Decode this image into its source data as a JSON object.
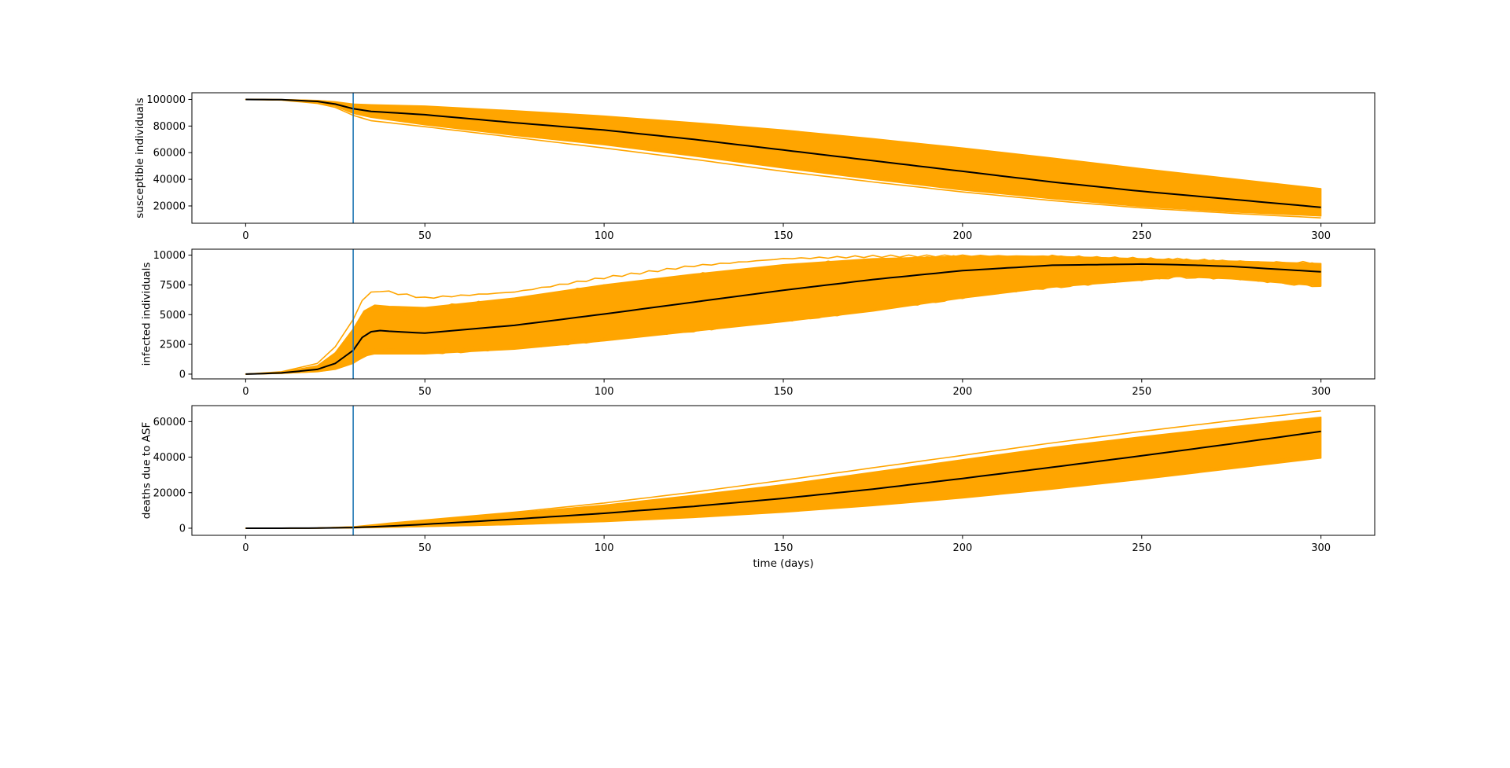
{
  "colors": {
    "ensemble": "#ffa500",
    "mean": "#000000",
    "intervention_line": "#1f77b4",
    "axes": "#000000",
    "background": "#ffffff"
  },
  "chart_data": [
    {
      "type": "line",
      "ylabel": "susceptible individuals",
      "xlabel": "",
      "xlim": [
        -15,
        315
      ],
      "ylim": [
        7000,
        105000
      ],
      "xticks": [
        0,
        50,
        100,
        150,
        200,
        250,
        300
      ],
      "yticks": [
        20000,
        40000,
        60000,
        80000,
        100000
      ],
      "intervention_x": 30,
      "x": [
        0,
        10,
        20,
        25,
        30,
        35,
        50,
        75,
        100,
        125,
        150,
        175,
        200,
        225,
        250,
        275,
        300
      ],
      "series": [
        {
          "role": "mean",
          "values": [
            100000,
            99800,
            98500,
            96500,
            93000,
            91000,
            88500,
            82500,
            77000,
            70000,
            62000,
            54000,
            46000,
            38000,
            31000,
            25000,
            19000
          ]
        },
        {
          "role": "upper",
          "values": [
            100000,
            99900,
            99200,
            98200,
            96500,
            96000,
            95000,
            91500,
            87500,
            82500,
            77000,
            70500,
            63500,
            56000,
            48000,
            40500,
            33000
          ]
        },
        {
          "role": "lower",
          "values": [
            100000,
            99600,
            97500,
            95000,
            89500,
            86500,
            81000,
            73000,
            66000,
            57500,
            48500,
            40000,
            32000,
            25500,
            19500,
            15500,
            12500
          ]
        },
        {
          "role": "outlier",
          "values": [
            100000,
            99500,
            97000,
            94000,
            88000,
            84000,
            79500,
            71500,
            63500,
            55000,
            46000,
            38000,
            30500,
            24000,
            18500,
            14500,
            11000
          ]
        }
      ]
    },
    {
      "type": "line",
      "ylabel": "infected individuals",
      "xlabel": "",
      "xlim": [
        -15,
        315
      ],
      "ylim": [
        -400,
        10500
      ],
      "xticks": [
        0,
        50,
        100,
        150,
        200,
        250,
        300
      ],
      "yticks": [
        0,
        2500,
        5000,
        7500,
        10000
      ],
      "intervention_x": 30,
      "x": [
        0,
        10,
        20,
        25,
        30,
        33,
        36,
        40,
        50,
        75,
        100,
        125,
        150,
        175,
        200,
        225,
        250,
        260,
        275,
        300
      ],
      "series": [
        {
          "role": "mean",
          "values": [
            0,
            100,
            400,
            900,
            2000,
            3300,
            3700,
            3600,
            3450,
            4100,
            5050,
            6050,
            7050,
            7950,
            8700,
            9150,
            9250,
            9200,
            9050,
            8600
          ]
        },
        {
          "role": "upper",
          "values": [
            0,
            150,
            700,
            1800,
            3800,
            5300,
            5800,
            5700,
            5600,
            6400,
            7500,
            8400,
            9200,
            9700,
            9900,
            9900,
            9700,
            9600,
            9500,
            9300
          ]
        },
        {
          "role": "lower",
          "values": [
            0,
            60,
            200,
            400,
            900,
            1500,
            1700,
            1700,
            1700,
            2100,
            2800,
            3600,
            4400,
            5300,
            6400,
            7300,
            7900,
            8200,
            8000,
            7400
          ]
        },
        {
          "role": "outlier",
          "values": [
            0,
            200,
            900,
            2300,
            4600,
            6500,
            7100,
            6900,
            6400,
            6900,
            8100,
            9100,
            9700,
            9900,
            9950,
            9900,
            9700,
            9600,
            9500,
            9200
          ]
        }
      ]
    },
    {
      "type": "line",
      "ylabel": "deaths due to ASF",
      "xlabel": "time (days)",
      "xlim": [
        -15,
        315
      ],
      "ylim": [
        -4000,
        69000
      ],
      "xticks": [
        0,
        50,
        100,
        150,
        200,
        250,
        300
      ],
      "yticks": [
        0,
        20000,
        40000,
        60000
      ],
      "intervention_x": 30,
      "x": [
        0,
        10,
        20,
        30,
        40,
        50,
        75,
        100,
        125,
        150,
        175,
        200,
        225,
        250,
        275,
        300
      ],
      "series": [
        {
          "role": "mean",
          "values": [
            0,
            0,
            50,
            400,
            1200,
            2200,
            5100,
            8400,
            12300,
            16800,
            22000,
            28000,
            34300,
            40800,
            47500,
            54500
          ]
        },
        {
          "role": "upper",
          "values": [
            0,
            0,
            100,
            700,
            2500,
            4200,
            8500,
            13000,
            18500,
            24500,
            31500,
            38500,
            45500,
            51500,
            57000,
            62500
          ]
        },
        {
          "role": "lower",
          "values": [
            0,
            0,
            20,
            200,
            500,
            900,
            2000,
            3700,
            6000,
            9000,
            12700,
            17000,
            22000,
            27500,
            33500,
            39500
          ]
        },
        {
          "role": "outlier",
          "values": [
            0,
            0,
            100,
            800,
            2800,
            4600,
            9000,
            14200,
            20300,
            27000,
            34000,
            41000,
            48000,
            54500,
            60500,
            66000
          ]
        }
      ]
    }
  ]
}
